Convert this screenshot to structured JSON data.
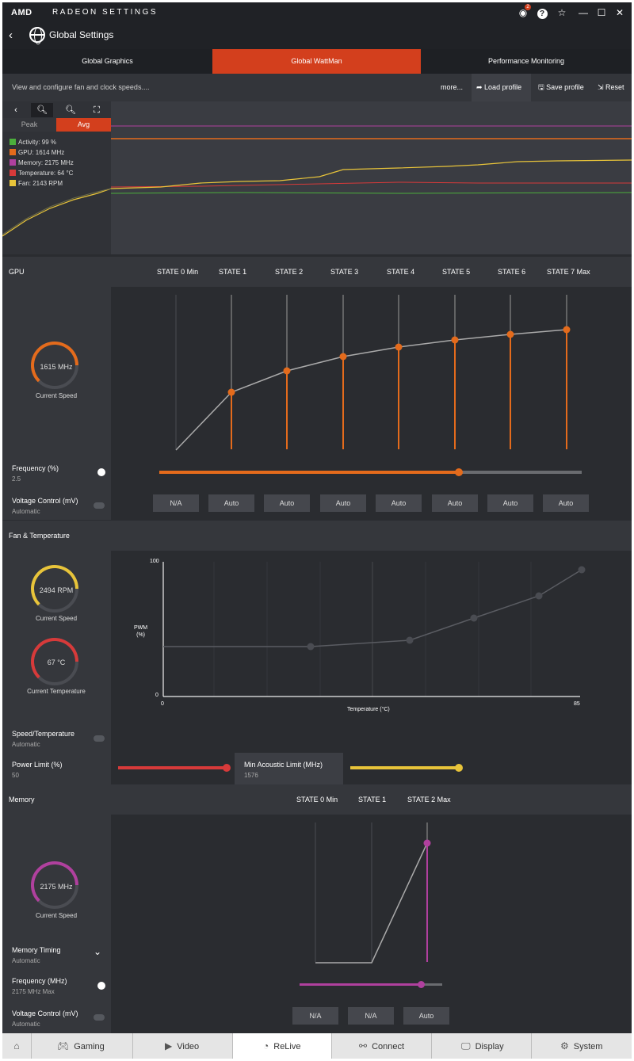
{
  "app": {
    "brand": "AMD",
    "title": "RADEON SETTINGS",
    "notif_count": "2"
  },
  "header": {
    "title": "Global Settings"
  },
  "tabs": [
    "Global Graphics",
    "Global WattMan",
    "Performance Monitoring"
  ],
  "toolbar": {
    "desc": "View and configure fan and clock speeds....",
    "more": "more...",
    "load": "Load profile",
    "save": "Save profile",
    "reset": "Reset"
  },
  "graph": {
    "peak": "Peak",
    "avg": "Avg",
    "legend": [
      {
        "label": "Activity: 99 %",
        "color": "#4caf3c"
      },
      {
        "label": "GPU: 1614 MHz",
        "color": "#e46b1c"
      },
      {
        "label": "Memory: 2175 MHz",
        "color": "#b0409e"
      },
      {
        "label": "Temperature: 64 °C",
        "color": "#d73a3a"
      },
      {
        "label": "Fan: 2143 RPM",
        "color": "#e8c43a"
      }
    ]
  },
  "gpu": {
    "title": "GPU",
    "states": [
      "STATE 0 Min",
      "STATE 1",
      "STATE 2",
      "STATE 3",
      "STATE 4",
      "STATE 5",
      "STATE 6",
      "STATE 7 Max"
    ],
    "gauge_value": "1615 MHz",
    "gauge_label": "Current Speed",
    "freq_title": "Frequency (%)",
    "freq_value": "2.5",
    "freq_pct": 0.71,
    "volt_title": "Voltage Control (mV)",
    "volt_mode": "Automatic",
    "volt_buttons": [
      "N/A",
      "Auto",
      "Auto",
      "Auto",
      "Auto",
      "Auto",
      "Auto",
      "Auto"
    ]
  },
  "fan": {
    "title": "Fan & Temperature",
    "speed_value": "2494 RPM",
    "speed_label": "Current Speed",
    "temp_value": "67 °C",
    "temp_label": "Current Temperature",
    "chart": {
      "ylabel": "PWM\n(%)",
      "xlabel": "Temperature (°C)",
      "ymax": "100",
      "ymin": "0",
      "xmin": "0",
      "xmax": "85"
    },
    "speed_temp_title": "Speed/Temperature",
    "speed_temp_mode": "Automatic",
    "power_title": "Power Limit (%)",
    "power_value": "50",
    "power_pct": 1.0,
    "acoustic_title": "Min Acoustic Limit (MHz)",
    "acoustic_value": "1576",
    "acoustic_pct": 1.0
  },
  "memory": {
    "title": "Memory",
    "states": [
      "STATE 0 Min",
      "STATE 1",
      "STATE 2 Max"
    ],
    "gauge_value": "2175 MHz",
    "gauge_label": "Current Speed",
    "timing_title": "Memory Timing",
    "timing_mode": "Automatic",
    "freq_title": "Frequency (MHz)",
    "freq_value": "2175 MHz Max",
    "freq_pct": 0.85,
    "volt_title": "Voltage Control (mV)",
    "volt_mode": "Automatic",
    "volt_buttons": [
      "N/A",
      "N/A",
      "Auto"
    ]
  },
  "nav": [
    "Gaming",
    "Video",
    "ReLive",
    "Connect",
    "Display",
    "System"
  ]
}
